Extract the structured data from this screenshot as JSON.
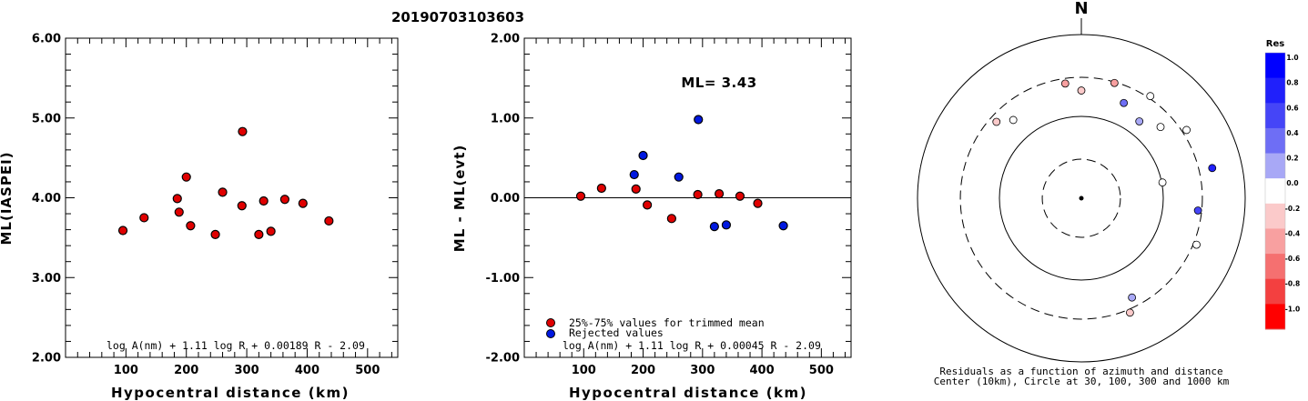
{
  "page_title": "20190703103603",
  "chart_data": [
    {
      "type": "scatter",
      "id": "ml-vs-distance",
      "xlabel": "Hypocentral distance (km)",
      "ylabel": "ML(IASPEI)",
      "xlim": [
        0,
        550
      ],
      "ylim": [
        2.0,
        6.0
      ],
      "x_ticks": [
        "100",
        "200",
        "300",
        "400",
        "500"
      ],
      "y_ticks": [
        "2.00",
        "3.00",
        "4.00",
        "5.00",
        "6.00"
      ],
      "formula": "log A(nm) + 1.11 log R + 0.00189 R - 2.09",
      "marker_color": "#e00000",
      "points": [
        {
          "x": 95,
          "y": 3.59
        },
        {
          "x": 130,
          "y": 3.75
        },
        {
          "x": 185,
          "y": 3.99
        },
        {
          "x": 188,
          "y": 3.82
        },
        {
          "x": 200,
          "y": 4.26
        },
        {
          "x": 207,
          "y": 3.65
        },
        {
          "x": 248,
          "y": 3.54
        },
        {
          "x": 260,
          "y": 4.07
        },
        {
          "x": 292,
          "y": 3.9
        },
        {
          "x": 293,
          "y": 4.83
        },
        {
          "x": 320,
          "y": 3.54
        },
        {
          "x": 328,
          "y": 3.96
        },
        {
          "x": 340,
          "y": 3.58
        },
        {
          "x": 363,
          "y": 3.98
        },
        {
          "x": 393,
          "y": 3.93
        },
        {
          "x": 436,
          "y": 3.71
        }
      ]
    },
    {
      "type": "scatter",
      "id": "residual-vs-distance",
      "xlabel": "Hypocentral distance (km)",
      "ylabel": "ML - ML(evt)",
      "xlim": [
        0,
        550
      ],
      "ylim": [
        -2.0,
        2.0
      ],
      "x_ticks": [
        "100",
        "200",
        "300",
        "400",
        "500"
      ],
      "y_ticks": [
        "-2.00",
        "-1.00",
        "0.00",
        "1.00",
        "2.00"
      ],
      "annotation": "ML= 3.43",
      "formula": "log A(nm) + 1.11 log R + 0.00045 R - 2.09",
      "legend": [
        {
          "label": "25%-75% values for trimmed mean",
          "color": "#e00000"
        },
        {
          "label": "Rejected values",
          "color": "#0018e0"
        }
      ],
      "series": [
        {
          "color": "#e00000",
          "points": [
            {
              "x": 95,
              "y": 0.02
            },
            {
              "x": 130,
              "y": 0.12
            },
            {
              "x": 188,
              "y": 0.11
            },
            {
              "x": 207,
              "y": -0.09
            },
            {
              "x": 248,
              "y": -0.26
            },
            {
              "x": 292,
              "y": 0.04
            },
            {
              "x": 328,
              "y": 0.05
            },
            {
              "x": 363,
              "y": 0.02
            },
            {
              "x": 393,
              "y": -0.07
            }
          ]
        },
        {
          "color": "#0018e0",
          "points": [
            {
              "x": 185,
              "y": 0.29
            },
            {
              "x": 200,
              "y": 0.53
            },
            {
              "x": 260,
              "y": 0.26
            },
            {
              "x": 293,
              "y": 0.98
            },
            {
              "x": 320,
              "y": -0.36
            },
            {
              "x": 340,
              "y": -0.34
            },
            {
              "x": 436,
              "y": -0.35
            }
          ]
        }
      ]
    },
    {
      "type": "scatter",
      "id": "residual-azimuth-polar",
      "north_label": "N",
      "caption_line1": "Residuals as a function of azimuth and distance",
      "caption_line2": "Center (10km), Circle at 30, 100, 300 and 1000 km",
      "rings_km": [
        30,
        100,
        300,
        1000
      ],
      "colorbar": {
        "title": "Res",
        "labels": [
          "1.0",
          "0.8",
          "0.6",
          "0.4",
          "0.2",
          "0.0",
          "-0.2",
          "-0.4",
          "-0.6",
          "-0.8",
          "-1.0"
        ],
        "colors": [
          "#0000ff",
          "#2020fb",
          "#4545f7",
          "#6e6ef5",
          "#a8a8f6",
          "#ffffff",
          "#fbcaca",
          "#f8a0a0",
          "#f57070",
          "#f34040",
          "#ff0000"
        ]
      },
      "points": [
        {
          "azimuth": 312,
          "distance_km": 248,
          "residual": -0.26
        },
        {
          "azimuth": 319,
          "distance_km": 185,
          "residual": -0.09
        },
        {
          "azimuth": 352,
          "distance_km": 260,
          "residual": -0.31
        },
        {
          "azimuth": 360,
          "distance_km": 207,
          "residual": -0.21
        },
        {
          "azimuth": 16,
          "distance_km": 292,
          "residual": -0.35
        },
        {
          "azimuth": 24,
          "distance_km": 188,
          "residual": 0.37
        },
        {
          "azimuth": 34,
          "distance_km": 320,
          "residual": 0.04
        },
        {
          "azimuth": 37,
          "distance_km": 150,
          "residual": 0.2
        },
        {
          "azimuth": 48,
          "distance_km": 200,
          "residual": 0.08
        },
        {
          "azimuth": 57,
          "distance_km": 340,
          "residual": 0.01
        },
        {
          "azimuth": 79,
          "distance_km": 102,
          "residual": 0.01
        },
        {
          "azimuth": 77,
          "distance_km": 436,
          "residual": 0.85
        },
        {
          "azimuth": 96,
          "distance_km": 270,
          "residual": 0.55
        },
        {
          "azimuth": 112,
          "distance_km": 328,
          "residual": 0.0
        },
        {
          "azimuth": 153,
          "distance_km": 230,
          "residual": 0.25
        },
        {
          "azimuth": 157,
          "distance_km": 330,
          "residual": -0.12
        }
      ]
    }
  ]
}
